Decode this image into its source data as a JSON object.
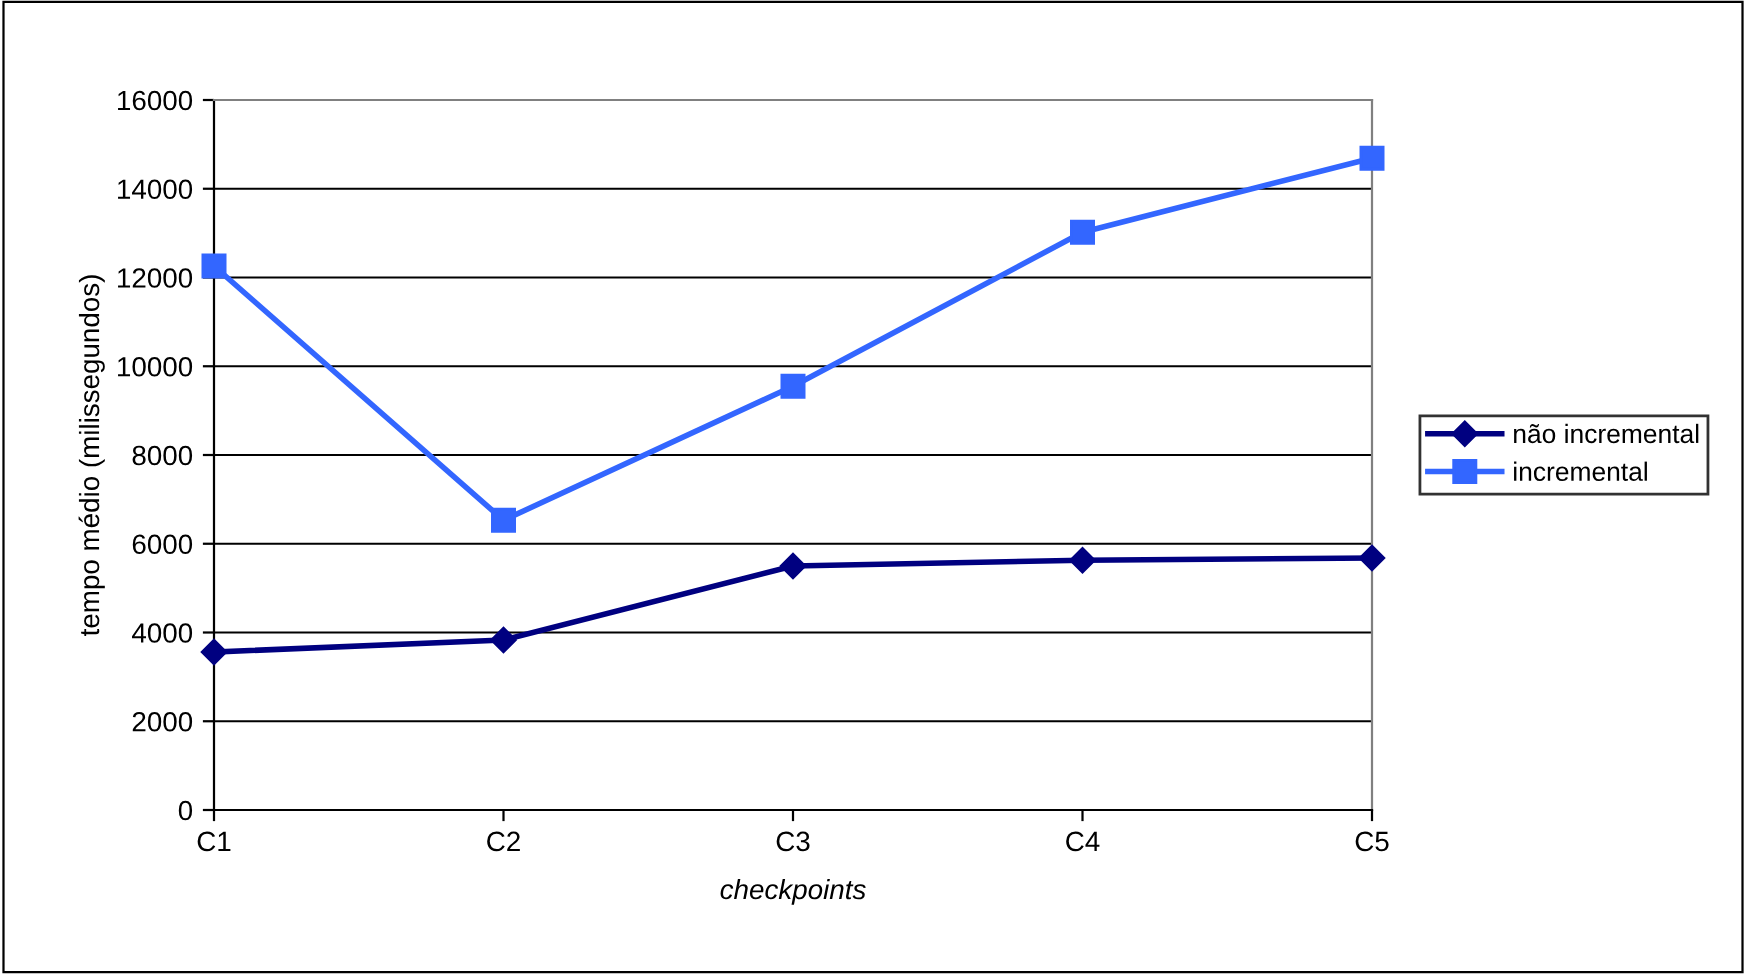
{
  "chart_data": {
    "type": "line",
    "xlabel": "checkpoints",
    "ylabel": "tempo médio (milissegundos)",
    "categories": [
      "C1",
      "C2",
      "C3",
      "C4",
      "C5"
    ],
    "series": [
      {
        "name": "não incremental",
        "color": "#000080",
        "marker": "diamond",
        "values": [
          3560,
          3830,
          5500,
          5630,
          5680
        ]
      },
      {
        "name": "incremental",
        "color": "#3366ff",
        "marker": "square",
        "values": [
          12260,
          6530,
          9550,
          13020,
          14690
        ]
      }
    ],
    "ylim": [
      0,
      16000
    ],
    "yticks": [
      0,
      2000,
      4000,
      6000,
      8000,
      10000,
      12000,
      14000,
      16000
    ],
    "grid": "y",
    "legend": "right",
    "line_style": "solid"
  }
}
